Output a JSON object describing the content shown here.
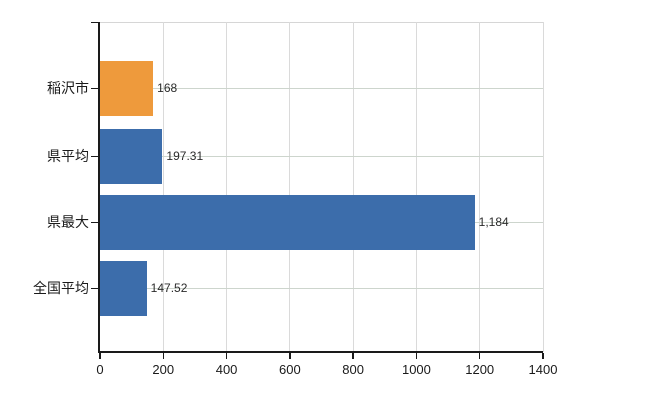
{
  "chart_data": {
    "type": "bar",
    "orientation": "horizontal",
    "title": "",
    "xlabel": "",
    "ylabel": "",
    "categories": [
      "稲沢市",
      "県平均",
      "県最大",
      "全国平均"
    ],
    "values": [
      168,
      197.31,
      1184,
      147.52
    ],
    "value_labels": [
      "168",
      "197.31",
      "1,184",
      "147.52"
    ],
    "bar_colors": [
      "#ee9a3c",
      "#3c6dab",
      "#3c6dab",
      "#3c6dab"
    ],
    "xlim": [
      0,
      1400
    ],
    "x_ticks": [
      0,
      200,
      400,
      600,
      800,
      1000,
      1200,
      1400
    ],
    "grid": "on",
    "legend": "none"
  },
  "colors": {
    "background": "#ffffff",
    "axis": "#1a1a1a",
    "grid_vertical": "#dadada",
    "grid_horizontal": "#cdd5cd",
    "plot_top_border": "#d6d6d6",
    "bar_orange": "#ee9a3c",
    "bar_blue": "#3c6dab",
    "tick_text": "#1a1a1a",
    "value_text": "#2b2b2b"
  }
}
